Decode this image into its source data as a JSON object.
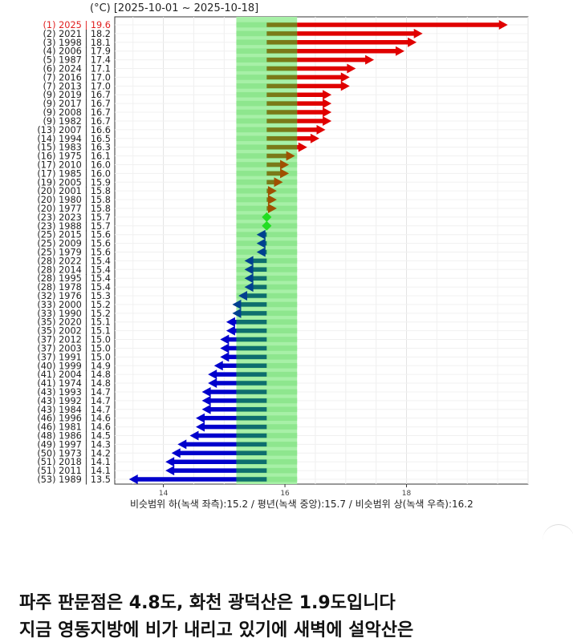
{
  "chart_data": {
    "type": "bar",
    "title": "(°C) [2025-10-01 ~ 2025-10-18]",
    "caption": "비슷범위 하(녹색 좌측):15.2 / 평년(녹색 중앙):15.7 / 비슷범위 상(녹색 우측):16.2",
    "normal": {
      "low": 15.2,
      "mid": 15.7,
      "high": 16.2
    },
    "x_ticks": [
      14,
      16,
      18
    ],
    "xlim": [
      13.2,
      20.0
    ],
    "grid": true,
    "colors": {
      "above": "#e00000",
      "below": "#0000cc",
      "near_above": "#a05000",
      "near_below": "#004090",
      "normal": "#22dd22",
      "band": "#90ee90",
      "highlight_label": "#e02020"
    },
    "rows": [
      {
        "label": "(1) 2025 | 19.6",
        "value": 19.6
      },
      {
        "label": "(2) 2021 | 18.2",
        "value": 18.2
      },
      {
        "label": "(3) 1998 | 18.1",
        "value": 18.1
      },
      {
        "label": "(4) 2006 | 17.9",
        "value": 17.9
      },
      {
        "label": "(5) 1987 | 17.4",
        "value": 17.4
      },
      {
        "label": "(6) 2024 | 17.1",
        "value": 17.1
      },
      {
        "label": "(7) 2016 | 17.0",
        "value": 17.0
      },
      {
        "label": "(7) 2013 | 17.0",
        "value": 17.0
      },
      {
        "label": "(9) 2019 | 16.7",
        "value": 16.7
      },
      {
        "label": "(9) 2017 | 16.7",
        "value": 16.7
      },
      {
        "label": "(9) 2008 | 16.7",
        "value": 16.7
      },
      {
        "label": "(9) 1982 | 16.7",
        "value": 16.7
      },
      {
        "label": "(13) 2007 | 16.6",
        "value": 16.6
      },
      {
        "label": "(14) 1994 | 16.5",
        "value": 16.5
      },
      {
        "label": "(15) 1983 | 16.3",
        "value": 16.3
      },
      {
        "label": "(16) 1975 | 16.1",
        "value": 16.1
      },
      {
        "label": "(17) 2010 | 16.0",
        "value": 16.0
      },
      {
        "label": "(17) 1985 | 16.0",
        "value": 16.0
      },
      {
        "label": "(19) 2005 | 15.9",
        "value": 15.9
      },
      {
        "label": "(20) 2001 | 15.8",
        "value": 15.8
      },
      {
        "label": "(20) 1980 | 15.8",
        "value": 15.8
      },
      {
        "label": "(20) 1977 | 15.8",
        "value": 15.8
      },
      {
        "label": "(23) 2023 | 15.7",
        "value": 15.7
      },
      {
        "label": "(23) 1988 | 15.7",
        "value": 15.7
      },
      {
        "label": "(25) 2015 | 15.6",
        "value": 15.6
      },
      {
        "label": "(25) 2009 | 15.6",
        "value": 15.6
      },
      {
        "label": "(25) 1979 | 15.6",
        "value": 15.6
      },
      {
        "label": "(28) 2022 | 15.4",
        "value": 15.4
      },
      {
        "label": "(28) 2014 | 15.4",
        "value": 15.4
      },
      {
        "label": "(28) 1995 | 15.4",
        "value": 15.4
      },
      {
        "label": "(28) 1978 | 15.4",
        "value": 15.4
      },
      {
        "label": "(32) 1976 | 15.3",
        "value": 15.3
      },
      {
        "label": "(33) 2000 | 15.2",
        "value": 15.2
      },
      {
        "label": "(33) 1990 | 15.2",
        "value": 15.2
      },
      {
        "label": "(35) 2020 | 15.1",
        "value": 15.1
      },
      {
        "label": "(35) 2002 | 15.1",
        "value": 15.1
      },
      {
        "label": "(37) 2012 | 15.0",
        "value": 15.0
      },
      {
        "label": "(37) 2003 | 15.0",
        "value": 15.0
      },
      {
        "label": "(37) 1991 | 15.0",
        "value": 15.0
      },
      {
        "label": "(40) 1999 | 14.9",
        "value": 14.9
      },
      {
        "label": "(41) 2004 | 14.8",
        "value": 14.8
      },
      {
        "label": "(41) 1974 | 14.8",
        "value": 14.8
      },
      {
        "label": "(43) 1993 | 14.7",
        "value": 14.7
      },
      {
        "label": "(43) 1992 | 14.7",
        "value": 14.7
      },
      {
        "label": "(43) 1984 | 14.7",
        "value": 14.7
      },
      {
        "label": "(46) 1996 | 14.6",
        "value": 14.6
      },
      {
        "label": "(46) 1981 | 14.6",
        "value": 14.6
      },
      {
        "label": "(48) 1986 | 14.5",
        "value": 14.5
      },
      {
        "label": "(49) 1997 | 14.3",
        "value": 14.3
      },
      {
        "label": "(50) 1973 | 14.2",
        "value": 14.2
      },
      {
        "label": "(51) 2018 | 14.1",
        "value": 14.1
      },
      {
        "label": "(51) 2011 | 14.1",
        "value": 14.1
      },
      {
        "label": "(53) 1989 | 13.5",
        "value": 13.5
      }
    ]
  },
  "post_text": {
    "line1": "파주 판문점은 4.8도, 화천 광덕산은 1.9도입니다",
    "line2": "지금 영동지방에 비가 내리고 있기에 새벽에 설악산은"
  }
}
